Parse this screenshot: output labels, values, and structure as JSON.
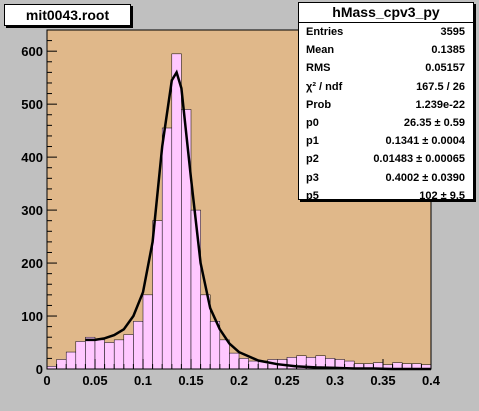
{
  "window_title": "mit0043.root",
  "stats": {
    "title": "hMass_cpv3_py",
    "rows": [
      {
        "label": "Entries",
        "value": "3595"
      },
      {
        "label": "Mean",
        "value": "0.1385"
      },
      {
        "label": "RMS",
        "value": "0.05157"
      },
      {
        "label": "χ² / ndf",
        "value": "167.5 / 26"
      },
      {
        "label": "Prob",
        "value": "1.239e-22"
      },
      {
        "label": "p0",
        "value": "26.35 ± 0.59"
      },
      {
        "label": "p1",
        "value": "0.1341 ± 0.0004"
      },
      {
        "label": "p2",
        "value": "0.01483 ± 0.00065"
      },
      {
        "label": "p3",
        "value": "0.4002 ± 0.0390"
      },
      {
        "label": "p5",
        "value": "102 ± 9.5"
      }
    ]
  },
  "colors": {
    "frame_bg": "#c0c0c0",
    "plot_bg": "#e0b88a",
    "hist_fill": "#ffc8ff",
    "hist_line": "#000000",
    "fit_line": "#000000"
  },
  "chart_data": {
    "type": "bar",
    "title": "",
    "xlabel": "",
    "ylabel": "",
    "xlim": [
      0,
      0.4
    ],
    "ylim": [
      0,
      640
    ],
    "x_ticks": [
      "0",
      "0.05",
      "0.1",
      "0.15",
      "0.2",
      "0.25",
      "0.3",
      "0.35",
      "0.4"
    ],
    "y_ticks": [
      "0",
      "100",
      "200",
      "300",
      "400",
      "500",
      "600"
    ],
    "grid": false,
    "bin_width": 0.01,
    "series": [
      {
        "bin_lows": [
          0.0,
          0.01,
          0.02,
          0.03,
          0.04,
          0.05,
          0.06,
          0.07,
          0.08,
          0.09,
          0.1,
          0.11,
          0.12,
          0.13,
          0.14,
          0.15,
          0.16,
          0.17,
          0.18,
          0.19,
          0.2,
          0.21,
          0.22,
          0.23,
          0.24,
          0.25,
          0.26,
          0.27,
          0.28,
          0.29,
          0.3,
          0.31,
          0.32,
          0.33,
          0.34,
          0.35,
          0.36,
          0.37,
          0.38,
          0.39
        ],
        "values": [
          5,
          18,
          32,
          52,
          60,
          55,
          50,
          55,
          65,
          90,
          140,
          280,
          455,
          595,
          490,
          300,
          140,
          90,
          55,
          30,
          20,
          15,
          15,
          18,
          18,
          22,
          25,
          22,
          25,
          20,
          18,
          15,
          10,
          10,
          12,
          8,
          12,
          10,
          10,
          8
        ]
      },
      {
        "name": "fit",
        "x": [
          0.04,
          0.05,
          0.06,
          0.07,
          0.08,
          0.09,
          0.1,
          0.11,
          0.12,
          0.13,
          0.135,
          0.14,
          0.15,
          0.16,
          0.17,
          0.18,
          0.19,
          0.2,
          0.22,
          0.24,
          0.26,
          0.28,
          0.3,
          0.32,
          0.34,
          0.36,
          0.38,
          0.4
        ],
        "y": [
          55,
          55,
          58,
          64,
          75,
          100,
          145,
          240,
          420,
          545,
          560,
          530,
          360,
          200,
          115,
          75,
          48,
          32,
          16,
          9,
          5,
          3,
          2,
          1,
          1,
          0,
          0,
          0
        ]
      }
    ]
  }
}
